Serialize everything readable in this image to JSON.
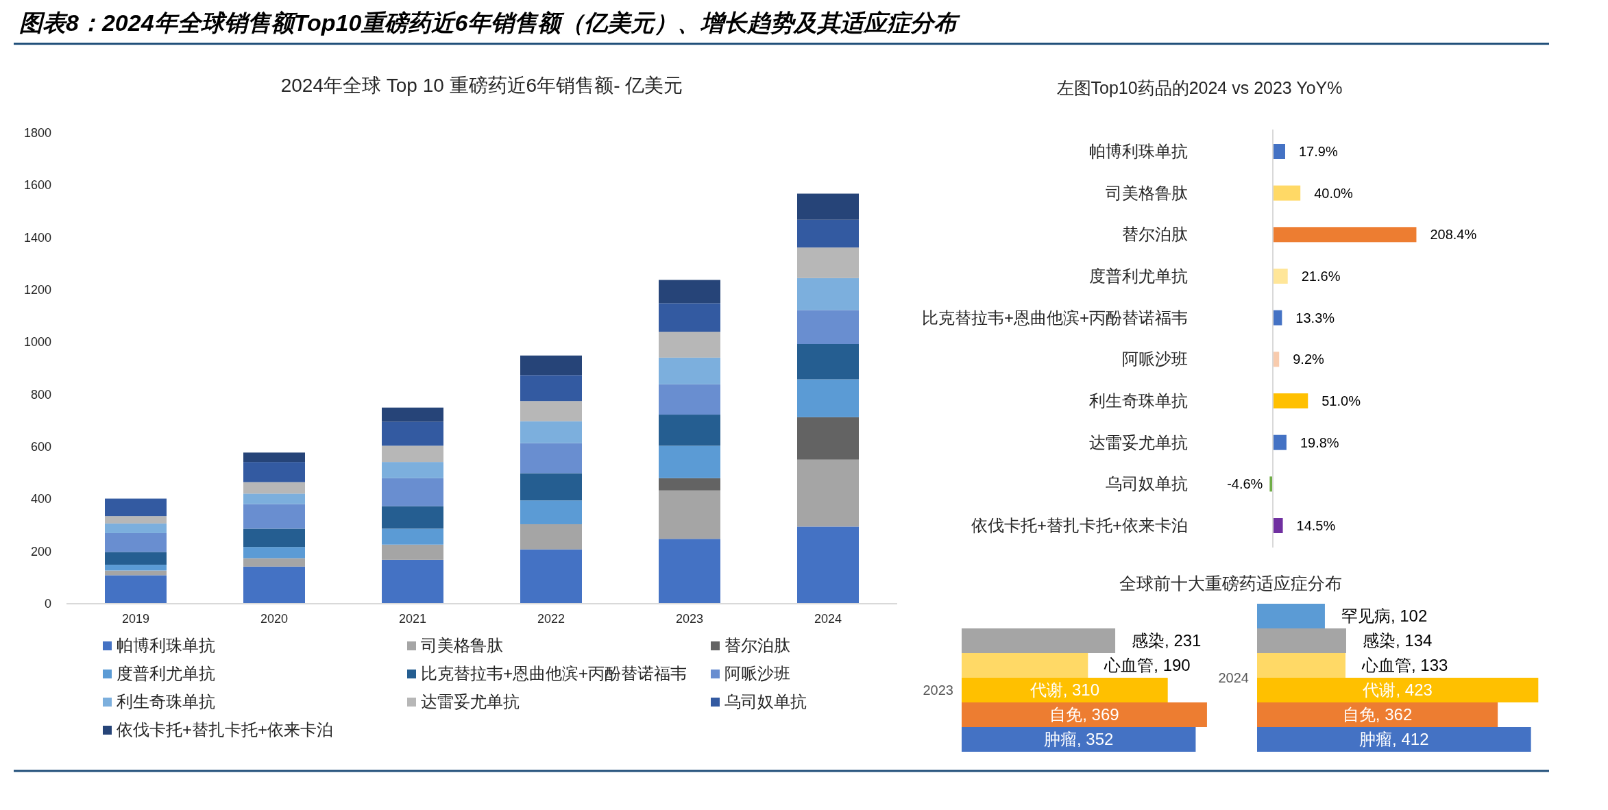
{
  "chart_data": [
    {
      "type": "bar",
      "stacked": true,
      "title": "图表8：2024年全球销售额Top10重磅药近6年销售额（亿美元）、增长趋势及其适应症分布",
      "subtitle": "2024年全球 Top 10 重磅药近6年销售额- 亿美元",
      "categories": [
        "2019",
        "2020",
        "2021",
        "2022",
        "2023",
        "2024"
      ],
      "ylim": [
        0,
        1800
      ],
      "yticks": [
        0,
        200,
        400,
        600,
        800,
        1000,
        1200,
        1400,
        1600,
        1800
      ],
      "legend": "bottom",
      "series": [
        {
          "name": "帕博利珠单抗",
          "color": "#4472c4",
          "values": [
            109,
            142,
            168,
            208,
            248,
            295
          ]
        },
        {
          "name": "司美格鲁肽",
          "color": "#a5a5a5",
          "values": [
            18,
            32,
            58,
            96,
            185,
            256
          ]
        },
        {
          "name": "替尔泊肽",
          "color": "#636363",
          "values": [
            0,
            0,
            0,
            0,
            47,
            162
          ]
        },
        {
          "name": "度普利尤单抗",
          "color": "#5b9bd5",
          "values": [
            22,
            43,
            61,
            91,
            124,
            145
          ]
        },
        {
          "name": "比克替拉韦+恩曲他滨+丙酚替诺福韦",
          "color": "#255e91",
          "values": [
            49,
            70,
            86,
            104,
            119,
            135
          ]
        },
        {
          "name": "阿哌沙班",
          "color": "#698ed0",
          "values": [
            72,
            94,
            107,
            115,
            116,
            130
          ]
        },
        {
          "name": "利生奇珠单抗",
          "color": "#7cafdd",
          "values": [
            37,
            40,
            62,
            84,
            102,
            122
          ]
        },
        {
          "name": "达雷妥尤单抗",
          "color": "#b7b7b7",
          "values": [
            28,
            44,
            62,
            77,
            99,
            117
          ]
        },
        {
          "name": "乌司奴单抗",
          "color": "#335aa1",
          "values": [
            67,
            77,
            92,
            99,
            109,
            106
          ]
        },
        {
          "name": "依伐卡托+替扎卡托+依来卡泊",
          "color": "#264478",
          "values": [
            0,
            36,
            54,
            75,
            89,
            100
          ]
        }
      ]
    },
    {
      "type": "bar",
      "orientation": "horizontal",
      "title": "左图Top10药品的2024 vs 2023 YoY%",
      "categories": [
        "帕博利珠单抗",
        "司美格鲁肽",
        "替尔泊肽",
        "度普利尤单抗",
        "比克替拉韦+恩曲他滨+丙酚替诺福韦",
        "阿哌沙班",
        "利生奇珠单抗",
        "达雷妥尤单抗",
        "乌司奴单抗",
        "依伐卡托+替扎卡托+依来卡泊"
      ],
      "values": [
        17.9,
        40.0,
        208.4,
        21.6,
        13.3,
        9.2,
        51.0,
        19.8,
        -4.6,
        14.5
      ],
      "colors": [
        "#4472c4",
        "#ffd966",
        "#ed7d31",
        "#ffe699",
        "#4472c4",
        "#f8cbad",
        "#ffc000",
        "#4472c4",
        "#70ad47",
        "#7030a0"
      ],
      "value_labels": [
        "17.9%",
        "40.0%",
        "208.4%",
        "21.6%",
        "13.3%",
        "9.2%",
        "51.0%",
        "19.8%",
        "-4.6%",
        "14.5%"
      ]
    },
    {
      "type": "bar",
      "orientation": "horizontal",
      "title": "全球前十大重磅药适应症分布",
      "ylabel": "2023",
      "categories": [
        null,
        null,
        null,
        null,
        null
      ],
      "values": [
        231,
        190,
        310,
        369,
        352
      ],
      "colors": [
        "#a5a5a5",
        "#ffd966",
        "#ffc000",
        "#ed7d31",
        "#4472c4"
      ],
      "value_labels": [
        "感染, 231",
        "心血管, 190",
        "代谢, 310",
        "自免, 369",
        "肿瘤, 352"
      ]
    },
    {
      "type": "bar",
      "orientation": "horizontal",
      "ylabel": "2024",
      "categories": [
        null,
        null,
        null,
        null,
        null,
        null
      ],
      "values": [
        102,
        134,
        133,
        423,
        362,
        412
      ],
      "colors": [
        "#5b9bd5",
        "#a5a5a5",
        "#ffd966",
        "#ffc000",
        "#ed7d31",
        "#4472c4"
      ],
      "value_labels": [
        "罕见病, 102",
        "感染, 134",
        "心血管, 133",
        "代谢, 423",
        "自免, 362",
        "肿瘤, 412"
      ]
    }
  ]
}
